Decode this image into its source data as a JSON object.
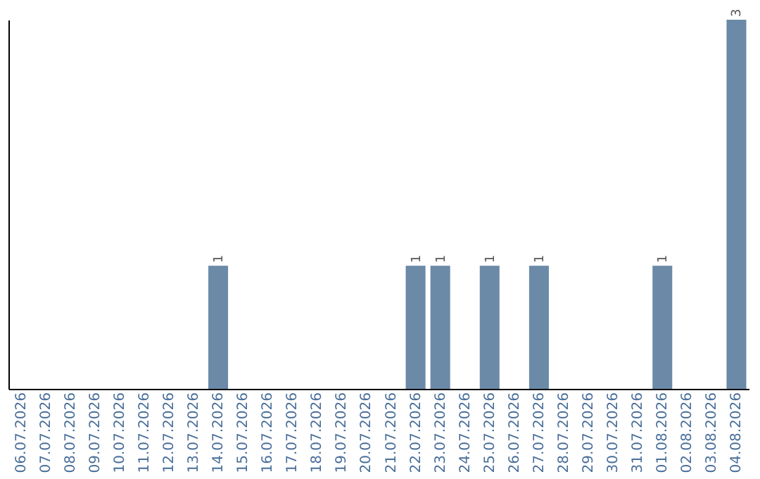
{
  "chart_data": {
    "type": "bar",
    "categories": [
      "06.07.2026",
      "07.07.2026",
      "08.07.2026",
      "09.07.2026",
      "10.07.2026",
      "11.07.2026",
      "12.07.2026",
      "13.07.2026",
      "14.07.2026",
      "15.07.2026",
      "16.07.2026",
      "17.07.2026",
      "18.07.2026",
      "19.07.2026",
      "20.07.2026",
      "21.07.2026",
      "22.07.2026",
      "23.07.2026",
      "24.07.2026",
      "25.07.2026",
      "26.07.2026",
      "27.07.2026",
      "28.07.2026",
      "29.07.2026",
      "30.07.2026",
      "31.07.2026",
      "01.08.2026",
      "02.08.2026",
      "03.08.2026",
      "04.08.2026"
    ],
    "values": [
      0,
      0,
      0,
      0,
      0,
      0,
      0,
      0,
      1,
      0,
      0,
      0,
      0,
      0,
      0,
      0,
      1,
      1,
      0,
      1,
      0,
      1,
      0,
      0,
      0,
      0,
      1,
      0,
      0,
      3
    ],
    "color": "#6b8aa8",
    "value_labels": [
      null,
      null,
      null,
      null,
      null,
      null,
      null,
      null,
      "1",
      null,
      null,
      null,
      null,
      null,
      null,
      null,
      "1",
      "1",
      null,
      "1",
      null,
      "1",
      null,
      null,
      null,
      null,
      "1",
      null,
      null,
      "3"
    ],
    "tick_labels": "x",
    "grid": false
  }
}
